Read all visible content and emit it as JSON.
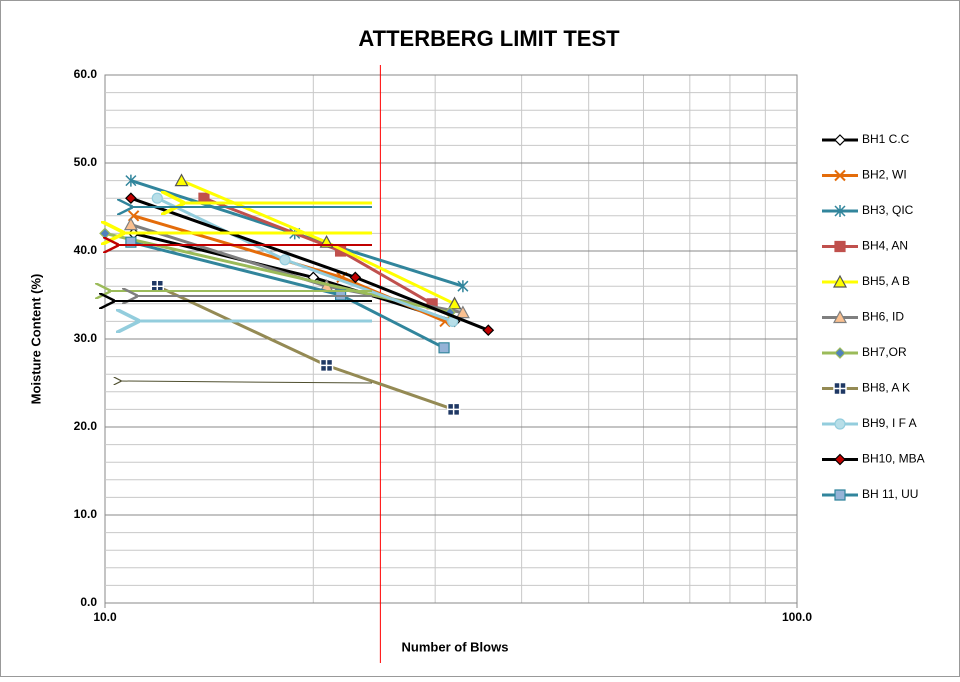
{
  "chart_data": {
    "type": "line",
    "title": "ATTERBERG LIMIT TEST",
    "xlabel": "Number of Blows",
    "ylabel": "Moisture Content (%)",
    "xscale": "log",
    "xlim": [
      10,
      100
    ],
    "xticks": [
      {
        "value": 10,
        "label": "10.0"
      },
      {
        "value": 100,
        "label": "100.0"
      }
    ],
    "xminorticks": [
      20,
      30,
      40,
      50,
      60,
      70,
      80,
      90
    ],
    "ylim": [
      0,
      60
    ],
    "yticks": [
      {
        "value": 0,
        "label": "0.0"
      },
      {
        "value": 10,
        "label": "10.0"
      },
      {
        "value": 20,
        "label": "20.0"
      },
      {
        "value": 30,
        "label": "30.0"
      },
      {
        "value": 40,
        "label": "40.0"
      },
      {
        "value": 50,
        "label": "50.0"
      },
      {
        "value": 60,
        "label": "60.0"
      }
    ],
    "yminor_step": 2,
    "grid": true,
    "legend": "right",
    "vline": {
      "x": 25,
      "color": "#ff0000"
    },
    "series": [
      {
        "name": "BH1  C.C",
        "color": "#000000",
        "marker": "diamond",
        "marker_fill": "#ffffff",
        "x": [
          11,
          20,
          32
        ],
        "values": [
          42,
          37,
          32
        ]
      },
      {
        "name": "BH2, WI",
        "color": "#e46c0a",
        "marker": "x",
        "marker_fill": "#e46c0a",
        "x": [
          11,
          22,
          31
        ],
        "values": [
          44,
          37,
          32
        ]
      },
      {
        "name": "BH3, QIC",
        "color": "#31859c",
        "marker": "star",
        "marker_fill": "#31859c",
        "x": [
          10.9,
          18.8,
          32.9
        ],
        "values": [
          48,
          42,
          36
        ]
      },
      {
        "name": "BH4, AN",
        "color": "#c0504d",
        "marker": "square",
        "marker_fill": "#c0504d",
        "x": [
          13.9,
          21.9,
          29.7
        ],
        "values": [
          46,
          40,
          34
        ]
      },
      {
        "name": "BH5, A B",
        "color": "#ffff00",
        "marker": "triangle",
        "marker_fill": "#ffff00",
        "x": [
          12.9,
          20.9,
          32
        ],
        "values": [
          48,
          41,
          34
        ]
      },
      {
        "name": "BH6, ID",
        "color": "#7f7f7f",
        "marker": "triangle",
        "marker_fill": "#fac090",
        "x": [
          10.9,
          20.9,
          32.9
        ],
        "values": [
          43,
          36,
          33
        ]
      },
      {
        "name": "BH7,OR",
        "color": "#9bbb59",
        "marker": "diamond",
        "marker_fill": "#4f81bd",
        "x": [
          10,
          31.5
        ],
        "values": [
          42,
          33
        ]
      },
      {
        "name": "BH8, A K",
        "color": "#948a54",
        "marker": "plus",
        "marker_fill": "#1f3864",
        "x": [
          11.9,
          20.9,
          31.9
        ],
        "values": [
          36,
          27,
          22
        ]
      },
      {
        "name": "BH9, I F A",
        "color": "#93cddd",
        "marker": "circle",
        "marker_fill": "#b7dee8",
        "x": [
          11.9,
          18.2,
          31.8
        ],
        "values": [
          46,
          39,
          32
        ]
      },
      {
        "name": "BH10, MBA",
        "color": "#000000",
        "marker": "diamond",
        "marker_fill": "#c00000",
        "x": [
          10.9,
          23,
          35.8
        ],
        "values": [
          46,
          37,
          31
        ]
      },
      {
        "name": "BH 11, UU",
        "color": "#31859c",
        "marker": "square",
        "marker_fill": "#95b3d7",
        "x": [
          10.9,
          21.9,
          30.9
        ],
        "values": [
          41,
          35,
          29
        ]
      }
    ]
  }
}
